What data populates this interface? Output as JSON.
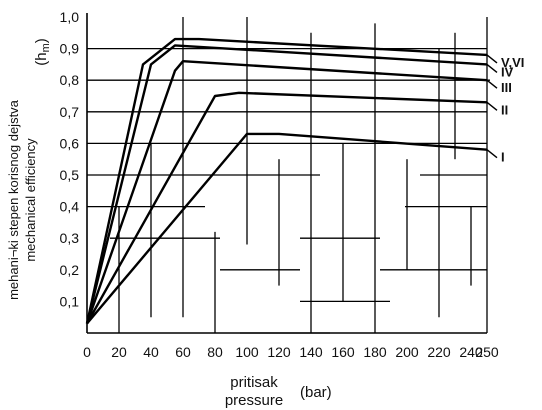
{
  "chart_data": {
    "type": "line",
    "ylabel_line1": "mehani¬ki stepen korisnog dejstva",
    "ylabel_line2": "mechanical  efficiency",
    "ylabel_symbol": "(h",
    "ylabel_symbol_sub": "m",
    "ylabel_symbol_close": ")",
    "xlabel_line1": "pritisak",
    "xlabel_line2": "pressure",
    "xlabel_unit": "(bar)",
    "xlim": [
      0,
      250
    ],
    "ylim": [
      0,
      1.0
    ],
    "xticks": [
      "0",
      "20",
      "40",
      "60",
      "80",
      "100",
      "120",
      "140",
      "160",
      "180",
      "200",
      "220",
      "240",
      "250"
    ],
    "xtick_values": [
      0,
      20,
      40,
      60,
      80,
      100,
      120,
      140,
      160,
      180,
      200,
      220,
      240,
      250
    ],
    "yticks": [
      "0,1",
      "0,2",
      "0,3",
      "0,4",
      "0,5",
      "0,6",
      "0,7",
      "0,8",
      "0,9",
      "1,0"
    ],
    "ytick_values": [
      0.1,
      0.2,
      0.3,
      0.4,
      0.5,
      0.6,
      0.7,
      0.8,
      0.9,
      1.0
    ],
    "grid": "irregular",
    "series": [
      {
        "name": "I",
        "points": [
          [
            0,
            0.03
          ],
          [
            100,
            0.63
          ],
          [
            120,
            0.63
          ],
          [
            250,
            0.58
          ]
        ]
      },
      {
        "name": "II",
        "points": [
          [
            0,
            0.03
          ],
          [
            80,
            0.75
          ],
          [
            95,
            0.76
          ],
          [
            250,
            0.73
          ]
        ]
      },
      {
        "name": "III",
        "points": [
          [
            0,
            0.03
          ],
          [
            55,
            0.83
          ],
          [
            60,
            0.86
          ],
          [
            250,
            0.8
          ]
        ]
      },
      {
        "name": "IV",
        "points": [
          [
            0,
            0.03
          ],
          [
            40,
            0.85
          ],
          [
            55,
            0.91
          ],
          [
            250,
            0.85
          ]
        ]
      },
      {
        "name": "V,VI",
        "points": [
          [
            0,
            0.03
          ],
          [
            35,
            0.85
          ],
          [
            55,
            0.93
          ],
          [
            70,
            0.93
          ],
          [
            250,
            0.88
          ]
        ]
      }
    ]
  }
}
